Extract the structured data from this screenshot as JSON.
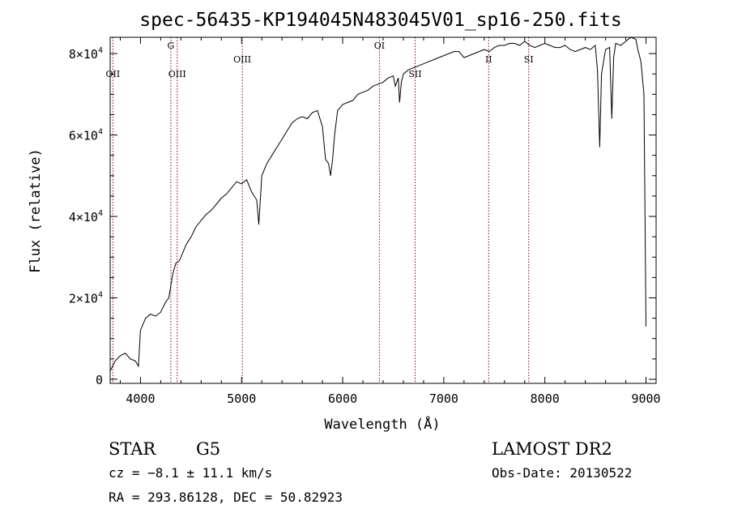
{
  "chart_data": {
    "type": "line",
    "title": "spec-56435-KP194045N483045V01_sp16-250.fits",
    "xlabel": "Wavelength (Å)",
    "ylabel": "Flux (relative)",
    "xlim": [
      3700,
      9100
    ],
    "ylim": [
      -1000,
      84000
    ],
    "x_ticks": [
      {
        "value": 4000,
        "label": "4000"
      },
      {
        "value": 5000,
        "label": "5000"
      },
      {
        "value": 6000,
        "label": "6000"
      },
      {
        "value": 7000,
        "label": "7000"
      },
      {
        "value": 8000,
        "label": "8000"
      },
      {
        "value": 9000,
        "label": "9000"
      }
    ],
    "y_ticks": [
      {
        "value": 0,
        "label": "0"
      },
      {
        "value": 20000,
        "label": "2×10",
        "exp": "4"
      },
      {
        "value": 40000,
        "label": "4×10",
        "exp": "4"
      },
      {
        "value": 60000,
        "label": "6×10",
        "exp": "4"
      },
      {
        "value": 80000,
        "label": "8×10",
        "exp": "4"
      }
    ],
    "line_markers": [
      {
        "wavelength": 3727,
        "label": "OII",
        "label_row": "low"
      },
      {
        "wavelength": 4300,
        "label": "G",
        "label_row": "high"
      },
      {
        "wavelength": 4363,
        "label": "OIII",
        "label_row": "low"
      },
      {
        "wavelength": 5007,
        "label": "OIII",
        "label_row": "mid"
      },
      {
        "wavelength": 6363,
        "label": "OI",
        "label_row": "high"
      },
      {
        "wavelength": 6716,
        "label": "SII",
        "label_row": "low"
      },
      {
        "wavelength": 7444,
        "label": "II",
        "label_row": "mid"
      },
      {
        "wavelength": 7840,
        "label": "SI",
        "label_row": "mid"
      }
    ],
    "series": [
      {
        "x": [
          3700,
          3750,
          3800,
          3850,
          3900,
          3950,
          3980,
          4000,
          4050,
          4100,
          4150,
          4200,
          4250,
          4280,
          4300,
          4320,
          4350,
          4380,
          4400,
          4450,
          4500,
          4550,
          4600,
          4650,
          4700,
          4750,
          4800,
          4850,
          4900,
          4950,
          5000,
          5050,
          5100,
          5150,
          5170,
          5200,
          5250,
          5300,
          5350,
          5400,
          5450,
          5500,
          5550,
          5600,
          5650,
          5700,
          5750,
          5800,
          5830,
          5860,
          5880,
          5900,
          5920,
          5950,
          6000,
          6050,
          6100,
          6150,
          6200,
          6250,
          6300,
          6350,
          6400,
          6450,
          6500,
          6520,
          6550,
          6563,
          6580,
          6600,
          6650,
          6700,
          6750,
          6800,
          6850,
          6900,
          6950,
          7000,
          7050,
          7100,
          7150,
          7200,
          7250,
          7300,
          7350,
          7400,
          7450,
          7500,
          7550,
          7600,
          7650,
          7700,
          7750,
          7800,
          7850,
          7900,
          7950,
          8000,
          8050,
          8100,
          8150,
          8200,
          8250,
          8300,
          8350,
          8400,
          8450,
          8498,
          8520,
          8542,
          8560,
          8600,
          8640,
          8662,
          8680,
          8700,
          8750,
          8800,
          8850,
          8900,
          8920,
          8950,
          8980,
          9000
        ],
        "y": [
          2000,
          4500,
          5800,
          6400,
          5000,
          4500,
          3200,
          12000,
          15000,
          16000,
          15500,
          16500,
          19000,
          20000,
          23000,
          26000,
          28500,
          29000,
          30000,
          33000,
          35000,
          37500,
          39000,
          40500,
          41500,
          43000,
          44500,
          45500,
          47000,
          48500,
          48000,
          49000,
          46000,
          44000,
          38000,
          50000,
          53000,
          55000,
          57000,
          59000,
          61000,
          63000,
          64000,
          64500,
          64000,
          65500,
          66000,
          62000,
          54000,
          53000,
          50000,
          54000,
          60000,
          66000,
          67500,
          68000,
          68500,
          70000,
          70500,
          71000,
          72000,
          72500,
          73000,
          74000,
          74500,
          72000,
          74000,
          68000,
          73000,
          75000,
          76000,
          76500,
          77000,
          77500,
          78000,
          78500,
          79000,
          79500,
          80000,
          80500,
          80500,
          79000,
          79500,
          80000,
          80500,
          81000,
          80500,
          81500,
          82000,
          82000,
          82500,
          82500,
          82000,
          83000,
          82000,
          81500,
          82000,
          82500,
          82000,
          81500,
          81500,
          82000,
          81000,
          80500,
          81000,
          81500,
          81000,
          82000,
          76000,
          57000,
          75000,
          81000,
          81500,
          64000,
          79000,
          82500,
          82000,
          83000,
          84000,
          83500,
          81000,
          78000,
          70000,
          13000
        ]
      }
    ],
    "grid": false,
    "legend": "none"
  },
  "info": {
    "class": "STAR",
    "subclass": "G5",
    "cz": "cz = −8.1 ± 11.1 km/s",
    "coords": "RA = 293.86128, DEC =  50.82923",
    "survey": "LAMOST DR2",
    "obs_date": "Obs-Date: 20130522"
  },
  "colors": {
    "axis": "#000000",
    "spectrum": "#000000",
    "marker": "#8b0000"
  }
}
